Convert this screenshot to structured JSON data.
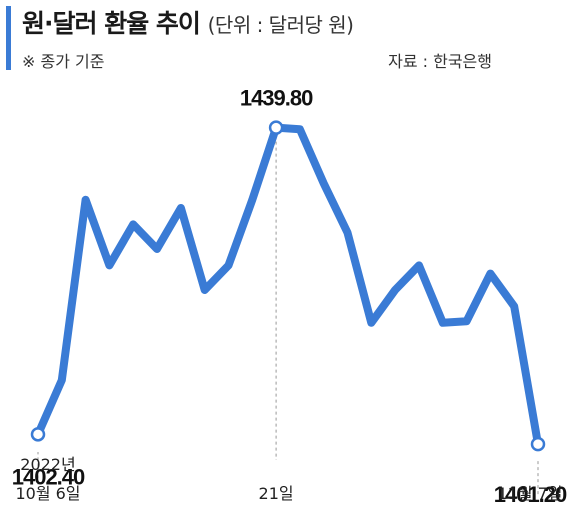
{
  "header": {
    "title": "원·달러 환율 추이",
    "unit": "(단위 : 달러당 원)",
    "note": "※ 종가 기준",
    "source": "자료 : 한국은행"
  },
  "colors": {
    "accent": "#3a7bd5",
    "line": "#3a7bd5"
  },
  "chart_data": {
    "type": "line",
    "title": "원·달러 환율 추이",
    "unit": "달러당 원",
    "x": [
      "2022-10-06",
      "2022-10-07",
      "2022-10-11",
      "2022-10-12",
      "2022-10-13",
      "2022-10-14",
      "2022-10-17",
      "2022-10-18",
      "2022-10-19",
      "2022-10-20",
      "2022-10-21",
      "2022-10-24",
      "2022-10-25",
      "2022-10-26",
      "2022-10-27",
      "2022-10-28",
      "2022-10-31",
      "2022-11-01",
      "2022-11-02",
      "2022-11-03",
      "2022-11-04",
      "2022-11-07"
    ],
    "values": [
      1402.4,
      1409.0,
      1431.0,
      1423.0,
      1428.0,
      1425.0,
      1430.0,
      1420.0,
      1423.0,
      1431.0,
      1439.8,
      1439.6,
      1433.0,
      1427.0,
      1416.0,
      1420.0,
      1423.0,
      1416.0,
      1416.2,
      1422.0,
      1418.0,
      1401.2
    ],
    "ylim": [
      1395,
      1445
    ],
    "annotations": [
      {
        "index": 0,
        "label": "1402.40"
      },
      {
        "index": 10,
        "label": "1439.80"
      },
      {
        "index": 21,
        "label": "1401.20"
      }
    ],
    "date_labels": [
      {
        "index": 0,
        "lines": [
          "2022년",
          "10월 6일"
        ]
      },
      {
        "index": 10,
        "lines": [
          "21일"
        ]
      },
      {
        "index": 21,
        "lines": [
          "11월 7일"
        ]
      }
    ]
  }
}
